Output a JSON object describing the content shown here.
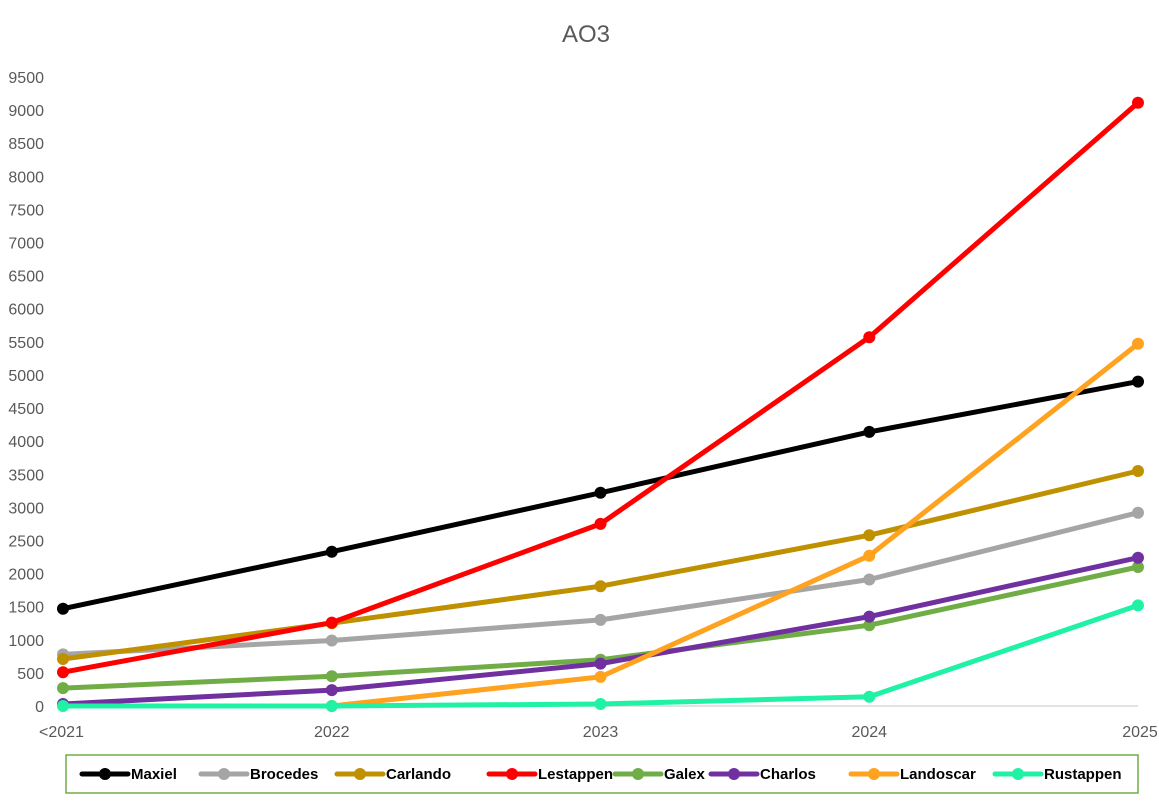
{
  "chart_data": {
    "type": "line",
    "title": "AO3",
    "xlabel": "",
    "ylabel": "",
    "categories": [
      "<2021",
      "2022",
      "2023",
      "2024",
      "2025"
    ],
    "ylim": [
      0,
      9500
    ],
    "yticks": [
      0,
      500,
      1000,
      1500,
      2000,
      2500,
      3000,
      3500,
      4000,
      4500,
      5000,
      5500,
      6000,
      6500,
      7000,
      7500,
      8000,
      8500,
      9000,
      9500
    ],
    "grid": false,
    "legend_position": "bottom",
    "series": [
      {
        "name": "Maxiel",
        "color": "#000000",
        "values": [
          1470,
          2330,
          3220,
          4140,
          4900
        ]
      },
      {
        "name": "Brocedes",
        "color": "#a5a5a5",
        "values": [
          780,
          990,
          1300,
          1910,
          2920
        ]
      },
      {
        "name": "Carlando",
        "color": "#bf9000",
        "values": [
          710,
          1250,
          1810,
          2580,
          3550
        ]
      },
      {
        "name": "Lestappen",
        "color": "#ff0000",
        "values": [
          510,
          1260,
          2750,
          5570,
          9110
        ]
      },
      {
        "name": "Galex",
        "color": "#70ad47",
        "values": [
          270,
          450,
          700,
          1220,
          2100
        ]
      },
      {
        "name": "Charlos",
        "color": "#7030a0",
        "values": [
          30,
          240,
          640,
          1350,
          2240
        ]
      },
      {
        "name": "Landoscar",
        "color": "#ffa21f",
        "values": [
          null,
          0,
          440,
          2270,
          5470
        ]
      },
      {
        "name": "Rustappen",
        "color": "#1ff2a4",
        "values": [
          0,
          0,
          30,
          140,
          1520
        ]
      }
    ]
  }
}
